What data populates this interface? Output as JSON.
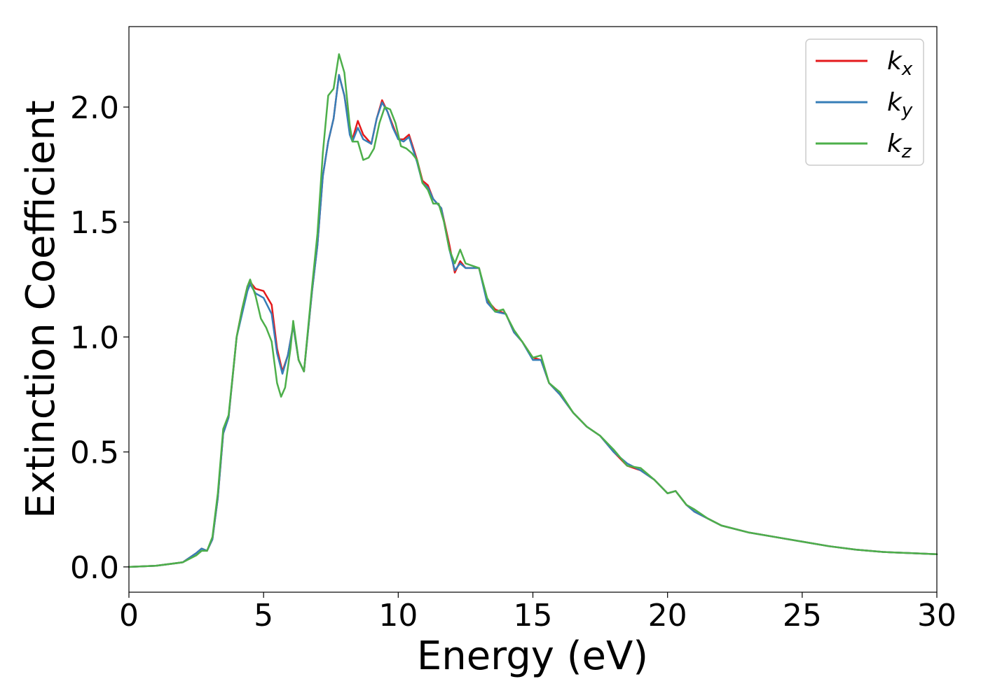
{
  "chart_data": {
    "type": "line",
    "title": "",
    "xlabel": "Energy (eV)",
    "ylabel": "Extinction Coefficient",
    "xlim": [
      0,
      30
    ],
    "ylim": [
      -0.11,
      2.35
    ],
    "xticks": [
      0,
      5,
      10,
      15,
      20,
      25,
      30
    ],
    "xtick_labels": [
      "0",
      "5",
      "10",
      "15",
      "20",
      "25",
      "30"
    ],
    "yticks": [
      0.0,
      0.5,
      1.0,
      1.5,
      2.0
    ],
    "ytick_labels": [
      "0.0",
      "0.5",
      "1.0",
      "1.5",
      "2.0"
    ],
    "grid": false,
    "legend_position": "top-right",
    "series": [
      {
        "name": "k",
        "subscript": "x",
        "color": "#e41a1c",
        "points": [
          [
            0,
            0
          ],
          [
            1,
            0.005
          ],
          [
            2,
            0.02
          ],
          [
            2.5,
            0.06
          ],
          [
            2.7,
            0.08
          ],
          [
            2.9,
            0.07
          ],
          [
            3.1,
            0.12
          ],
          [
            3.3,
            0.3
          ],
          [
            3.5,
            0.58
          ],
          [
            3.7,
            0.65
          ],
          [
            4.0,
            1.0
          ],
          [
            4.2,
            1.12
          ],
          [
            4.4,
            1.22
          ],
          [
            4.5,
            1.24
          ],
          [
            4.7,
            1.21
          ],
          [
            5.0,
            1.2
          ],
          [
            5.3,
            1.14
          ],
          [
            5.5,
            0.95
          ],
          [
            5.7,
            0.85
          ],
          [
            5.9,
            0.92
          ],
          [
            6.1,
            1.05
          ],
          [
            6.3,
            0.9
          ],
          [
            6.5,
            0.85
          ],
          [
            6.8,
            1.2
          ],
          [
            7.0,
            1.4
          ],
          [
            7.2,
            1.7
          ],
          [
            7.4,
            1.85
          ],
          [
            7.6,
            1.95
          ],
          [
            7.8,
            2.14
          ],
          [
            8.0,
            2.05
          ],
          [
            8.2,
            1.9
          ],
          [
            8.3,
            1.86
          ],
          [
            8.5,
            1.94
          ],
          [
            8.7,
            1.88
          ],
          [
            9.0,
            1.84
          ],
          [
            9.2,
            1.95
          ],
          [
            9.4,
            2.03
          ],
          [
            9.6,
            1.98
          ],
          [
            9.8,
            1.92
          ],
          [
            10.0,
            1.86
          ],
          [
            10.2,
            1.86
          ],
          [
            10.4,
            1.88
          ],
          [
            10.7,
            1.77
          ],
          [
            10.9,
            1.68
          ],
          [
            11.1,
            1.66
          ],
          [
            11.3,
            1.6
          ],
          [
            11.6,
            1.56
          ],
          [
            11.9,
            1.4
          ],
          [
            12.1,
            1.28
          ],
          [
            12.3,
            1.33
          ],
          [
            12.5,
            1.3
          ],
          [
            13.0,
            1.3
          ],
          [
            13.3,
            1.16
          ],
          [
            13.6,
            1.12
          ],
          [
            14.0,
            1.1
          ],
          [
            14.3,
            1.02
          ],
          [
            14.6,
            0.98
          ],
          [
            15.0,
            0.91
          ],
          [
            15.3,
            0.9
          ],
          [
            15.6,
            0.8
          ],
          [
            16.0,
            0.75
          ],
          [
            16.5,
            0.67
          ],
          [
            17.0,
            0.61
          ],
          [
            17.5,
            0.57
          ],
          [
            18.0,
            0.5
          ],
          [
            18.5,
            0.44
          ],
          [
            19.0,
            0.42
          ],
          [
            19.5,
            0.38
          ],
          [
            20.0,
            0.32
          ],
          [
            20.3,
            0.33
          ],
          [
            20.7,
            0.27
          ],
          [
            21.0,
            0.24
          ],
          [
            21.5,
            0.21
          ],
          [
            22.0,
            0.18
          ],
          [
            23.0,
            0.15
          ],
          [
            24.0,
            0.13
          ],
          [
            25.0,
            0.11
          ],
          [
            26.0,
            0.09
          ],
          [
            27.0,
            0.075
          ],
          [
            28.0,
            0.065
          ],
          [
            29.0,
            0.06
          ],
          [
            30.0,
            0.055
          ]
        ]
      },
      {
        "name": "k",
        "subscript": "y",
        "color": "#377eb8",
        "points": [
          [
            0,
            0
          ],
          [
            1,
            0.005
          ],
          [
            2,
            0.02
          ],
          [
            2.5,
            0.06
          ],
          [
            2.7,
            0.08
          ],
          [
            2.9,
            0.07
          ],
          [
            3.1,
            0.12
          ],
          [
            3.3,
            0.3
          ],
          [
            3.5,
            0.58
          ],
          [
            3.7,
            0.65
          ],
          [
            4.0,
            1.0
          ],
          [
            4.2,
            1.1
          ],
          [
            4.4,
            1.2
          ],
          [
            4.5,
            1.23
          ],
          [
            4.7,
            1.19
          ],
          [
            5.0,
            1.17
          ],
          [
            5.3,
            1.1
          ],
          [
            5.5,
            0.93
          ],
          [
            5.7,
            0.84
          ],
          [
            5.9,
            0.92
          ],
          [
            6.1,
            1.05
          ],
          [
            6.3,
            0.9
          ],
          [
            6.5,
            0.85
          ],
          [
            6.8,
            1.2
          ],
          [
            7.0,
            1.4
          ],
          [
            7.2,
            1.7
          ],
          [
            7.4,
            1.85
          ],
          [
            7.6,
            1.95
          ],
          [
            7.8,
            2.14
          ],
          [
            8.0,
            2.05
          ],
          [
            8.2,
            1.88
          ],
          [
            8.3,
            1.85
          ],
          [
            8.5,
            1.91
          ],
          [
            8.7,
            1.86
          ],
          [
            9.0,
            1.84
          ],
          [
            9.2,
            1.95
          ],
          [
            9.4,
            2.02
          ],
          [
            9.6,
            1.98
          ],
          [
            9.8,
            1.91
          ],
          [
            10.0,
            1.86
          ],
          [
            10.2,
            1.85
          ],
          [
            10.4,
            1.87
          ],
          [
            10.7,
            1.76
          ],
          [
            10.9,
            1.67
          ],
          [
            11.1,
            1.65
          ],
          [
            11.3,
            1.6
          ],
          [
            11.6,
            1.56
          ],
          [
            11.9,
            1.38
          ],
          [
            12.1,
            1.29
          ],
          [
            12.3,
            1.32
          ],
          [
            12.5,
            1.3
          ],
          [
            13.0,
            1.3
          ],
          [
            13.3,
            1.15
          ],
          [
            13.6,
            1.11
          ],
          [
            14.0,
            1.1
          ],
          [
            14.3,
            1.02
          ],
          [
            14.6,
            0.98
          ],
          [
            15.0,
            0.9
          ],
          [
            15.3,
            0.9
          ],
          [
            15.6,
            0.8
          ],
          [
            16.0,
            0.75
          ],
          [
            16.5,
            0.67
          ],
          [
            17.0,
            0.61
          ],
          [
            17.5,
            0.57
          ],
          [
            18.0,
            0.5
          ],
          [
            18.5,
            0.45
          ],
          [
            19.0,
            0.42
          ],
          [
            19.5,
            0.38
          ],
          [
            20.0,
            0.32
          ],
          [
            20.3,
            0.33
          ],
          [
            20.7,
            0.27
          ],
          [
            21.0,
            0.24
          ],
          [
            21.5,
            0.21
          ],
          [
            22.0,
            0.18
          ],
          [
            23.0,
            0.15
          ],
          [
            24.0,
            0.13
          ],
          [
            25.0,
            0.11
          ],
          [
            26.0,
            0.09
          ],
          [
            27.0,
            0.075
          ],
          [
            28.0,
            0.065
          ],
          [
            29.0,
            0.06
          ],
          [
            30.0,
            0.055
          ]
        ]
      },
      {
        "name": "k",
        "subscript": "z",
        "color": "#4daf4a",
        "points": [
          [
            0,
            0
          ],
          [
            1,
            0.005
          ],
          [
            2,
            0.02
          ],
          [
            2.5,
            0.05
          ],
          [
            2.7,
            0.07
          ],
          [
            2.9,
            0.07
          ],
          [
            3.1,
            0.13
          ],
          [
            3.3,
            0.32
          ],
          [
            3.5,
            0.6
          ],
          [
            3.7,
            0.66
          ],
          [
            4.0,
            1.0
          ],
          [
            4.2,
            1.12
          ],
          [
            4.4,
            1.22
          ],
          [
            4.5,
            1.25
          ],
          [
            4.7,
            1.18
          ],
          [
            4.9,
            1.08
          ],
          [
            5.1,
            1.04
          ],
          [
            5.3,
            0.98
          ],
          [
            5.5,
            0.8
          ],
          [
            5.65,
            0.74
          ],
          [
            5.8,
            0.78
          ],
          [
            6.0,
            0.95
          ],
          [
            6.1,
            1.07
          ],
          [
            6.3,
            0.9
          ],
          [
            6.5,
            0.85
          ],
          [
            6.8,
            1.22
          ],
          [
            7.0,
            1.45
          ],
          [
            7.2,
            1.8
          ],
          [
            7.4,
            2.05
          ],
          [
            7.6,
            2.08
          ],
          [
            7.8,
            2.23
          ],
          [
            8.0,
            2.15
          ],
          [
            8.2,
            1.92
          ],
          [
            8.3,
            1.85
          ],
          [
            8.5,
            1.85
          ],
          [
            8.7,
            1.77
          ],
          [
            8.9,
            1.78
          ],
          [
            9.1,
            1.82
          ],
          [
            9.3,
            1.93
          ],
          [
            9.5,
            2.0
          ],
          [
            9.7,
            1.99
          ],
          [
            9.9,
            1.93
          ],
          [
            10.1,
            1.83
          ],
          [
            10.3,
            1.82
          ],
          [
            10.5,
            1.8
          ],
          [
            10.7,
            1.77
          ],
          [
            10.9,
            1.67
          ],
          [
            11.1,
            1.64
          ],
          [
            11.3,
            1.58
          ],
          [
            11.5,
            1.58
          ],
          [
            11.7,
            1.5
          ],
          [
            11.9,
            1.38
          ],
          [
            12.1,
            1.32
          ],
          [
            12.3,
            1.38
          ],
          [
            12.5,
            1.32
          ],
          [
            13.0,
            1.3
          ],
          [
            13.3,
            1.17
          ],
          [
            13.6,
            1.11
          ],
          [
            13.9,
            1.12
          ],
          [
            14.3,
            1.03
          ],
          [
            14.6,
            0.98
          ],
          [
            15.0,
            0.91
          ],
          [
            15.3,
            0.92
          ],
          [
            15.6,
            0.8
          ],
          [
            16.0,
            0.76
          ],
          [
            16.5,
            0.67
          ],
          [
            17.0,
            0.61
          ],
          [
            17.5,
            0.57
          ],
          [
            18.0,
            0.51
          ],
          [
            18.5,
            0.44
          ],
          [
            19.0,
            0.43
          ],
          [
            19.5,
            0.38
          ],
          [
            20.0,
            0.32
          ],
          [
            20.3,
            0.33
          ],
          [
            20.7,
            0.27
          ],
          [
            21.0,
            0.25
          ],
          [
            21.5,
            0.21
          ],
          [
            22.0,
            0.18
          ],
          [
            23.0,
            0.15
          ],
          [
            24.0,
            0.13
          ],
          [
            25.0,
            0.11
          ],
          [
            26.0,
            0.09
          ],
          [
            27.0,
            0.075
          ],
          [
            28.0,
            0.065
          ],
          [
            29.0,
            0.06
          ],
          [
            30.0,
            0.055
          ]
        ]
      }
    ]
  }
}
